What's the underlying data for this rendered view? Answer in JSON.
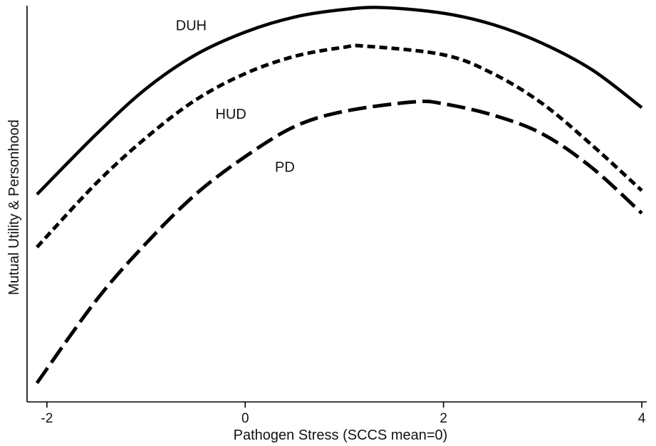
{
  "chart_data": {
    "type": "line",
    "title": "",
    "xlabel": "Pathogen Stress  (SCCS mean=0)",
    "ylabel": "Mutual Utility & Personhood",
    "xlim": [
      -2.2,
      4.05
    ],
    "ylim": [
      -0.05,
      1.0
    ],
    "xticks": [
      -2,
      0,
      2,
      4
    ],
    "xtick_labels": [
      "-2",
      "0",
      "2",
      "4"
    ],
    "y_tick_labels_shown": false,
    "grid": false,
    "legend": "none",
    "series": [
      {
        "name": "DUH",
        "style": "solid",
        "x": [
          -2.1,
          -1.5,
          -1.0,
          -0.5,
          0.0,
          0.5,
          1.0,
          1.4,
          2.0,
          2.5,
          3.0,
          3.5,
          4.0
        ],
        "y": [
          0.5,
          0.66,
          0.78,
          0.87,
          0.93,
          0.97,
          0.99,
          0.995,
          0.98,
          0.95,
          0.9,
          0.83,
          0.73
        ]
      },
      {
        "name": "HUD",
        "style": "short-dash",
        "x": [
          -2.1,
          -1.5,
          -1.0,
          -0.5,
          0.0,
          0.5,
          1.0,
          1.2,
          2.0,
          2.5,
          3.0,
          3.5,
          4.0
        ],
        "y": [
          0.36,
          0.53,
          0.65,
          0.75,
          0.82,
          0.866,
          0.89,
          0.893,
          0.87,
          0.82,
          0.74,
          0.63,
          0.51
        ]
      },
      {
        "name": "PD",
        "style": "long-dash",
        "x": [
          -2.1,
          -1.5,
          -1.0,
          -0.5,
          0.0,
          0.5,
          1.0,
          1.7,
          2.0,
          2.5,
          3.0,
          3.5,
          4.0
        ],
        "y": [
          0.0,
          0.22,
          0.37,
          0.5,
          0.6,
          0.68,
          0.72,
          0.745,
          0.74,
          0.71,
          0.66,
          0.57,
          0.45
        ]
      }
    ],
    "annotations": [
      {
        "text": "DUH",
        "x": -0.7,
        "y": 0.935
      },
      {
        "text": "HUD",
        "x": -0.3,
        "y": 0.7
      },
      {
        "text": "PD",
        "x": 0.3,
        "y": 0.56
      }
    ]
  }
}
